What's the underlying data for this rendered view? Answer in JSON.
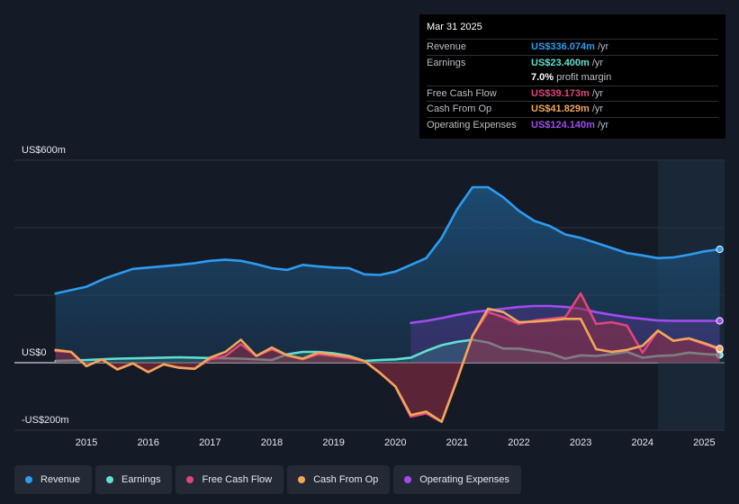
{
  "tooltip": {
    "date": "Mar 31 2025",
    "rows": [
      {
        "label": "Revenue",
        "value": "US$336.074m",
        "unit": "/yr",
        "color": "#2d9cf0"
      },
      {
        "label": "Earnings",
        "value": "US$23.400m",
        "unit": "/yr",
        "color": "#5fe0d1"
      },
      {
        "label": "",
        "value": "7.0%",
        "unit": "profit margin",
        "color": "#ffffff"
      },
      {
        "label": "Free Cash Flow",
        "value": "US$39.173m",
        "unit": "/yr",
        "color": "#e0457b"
      },
      {
        "label": "Cash From Op",
        "value": "US$41.829m",
        "unit": "/yr",
        "color": "#f2a65a"
      },
      {
        "label": "Operating Expenses",
        "value": "US$124.140m",
        "unit": "/yr",
        "color": "#a24bf2"
      }
    ]
  },
  "legend": [
    {
      "label": "Revenue",
      "color": "#2d9cf0"
    },
    {
      "label": "Earnings",
      "color": "#5fe0d1"
    },
    {
      "label": "Free Cash Flow",
      "color": "#e0457b"
    },
    {
      "label": "Cash From Op",
      "color": "#f2a65a"
    },
    {
      "label": "Operating Expenses",
      "color": "#a24bf2"
    }
  ],
  "chart_data": {
    "type": "area",
    "y_unit": "US$ millions",
    "ylim": [
      -200,
      600
    ],
    "y_tick_labels": [
      {
        "value": 600,
        "label": "US$600m"
      },
      {
        "value": 0,
        "label": "US$0"
      },
      {
        "value": -200,
        "label": "-US$200m"
      }
    ],
    "xlim": [
      2014.3,
      2025.3
    ],
    "x_ticks": [
      2015,
      2016,
      2017,
      2018,
      2019,
      2020,
      2021,
      2022,
      2023,
      2024,
      2025
    ],
    "x_tick_labels": [
      "2015",
      "2016",
      "2017",
      "2018",
      "2019",
      "2020",
      "2021",
      "2022",
      "2023",
      "2024",
      "2025"
    ],
    "forecast_shade_start": 2024.25,
    "series": [
      {
        "name": "Revenue",
        "color": "#2d9cf0",
        "fill": true,
        "points": [
          [
            2014.5,
            205
          ],
          [
            2015.0,
            225
          ],
          [
            2015.3,
            250
          ],
          [
            2015.75,
            278
          ],
          [
            2016.0,
            282
          ],
          [
            2016.5,
            290
          ],
          [
            2016.75,
            295
          ],
          [
            2017.0,
            302
          ],
          [
            2017.25,
            305
          ],
          [
            2017.5,
            302
          ],
          [
            2017.75,
            292
          ],
          [
            2018.0,
            280
          ],
          [
            2018.25,
            275
          ],
          [
            2018.5,
            290
          ],
          [
            2018.75,
            285
          ],
          [
            2019.0,
            282
          ],
          [
            2019.25,
            280
          ],
          [
            2019.5,
            262
          ],
          [
            2019.75,
            260
          ],
          [
            2020.0,
            270
          ],
          [
            2020.25,
            290
          ],
          [
            2020.5,
            310
          ],
          [
            2020.75,
            370
          ],
          [
            2021.0,
            455
          ],
          [
            2021.25,
            520
          ],
          [
            2021.5,
            520
          ],
          [
            2021.75,
            490
          ],
          [
            2022.0,
            450
          ],
          [
            2022.25,
            420
          ],
          [
            2022.5,
            405
          ],
          [
            2022.75,
            380
          ],
          [
            2023.0,
            370
          ],
          [
            2023.25,
            355
          ],
          [
            2023.5,
            340
          ],
          [
            2023.75,
            325
          ],
          [
            2024.0,
            318
          ],
          [
            2024.25,
            310
          ],
          [
            2024.5,
            312
          ],
          [
            2024.75,
            320
          ],
          [
            2025.0,
            330
          ],
          [
            2025.25,
            336
          ]
        ]
      },
      {
        "name": "Operating Expenses",
        "color": "#a24bf2",
        "fill": true,
        "points": [
          [
            2020.25,
            118
          ],
          [
            2020.5,
            124
          ],
          [
            2020.75,
            132
          ],
          [
            2021.0,
            142
          ],
          [
            2021.25,
            150
          ],
          [
            2021.5,
            155
          ],
          [
            2021.75,
            160
          ],
          [
            2022.0,
            165
          ],
          [
            2022.25,
            168
          ],
          [
            2022.5,
            168
          ],
          [
            2022.75,
            165
          ],
          [
            2023.0,
            160
          ],
          [
            2023.25,
            150
          ],
          [
            2023.5,
            142
          ],
          [
            2023.75,
            135
          ],
          [
            2024.0,
            130
          ],
          [
            2024.25,
            125
          ],
          [
            2024.5,
            124
          ],
          [
            2024.75,
            124
          ],
          [
            2025.0,
            124
          ],
          [
            2025.25,
            124
          ]
        ]
      },
      {
        "name": "Earnings",
        "color": "#5fe0d1",
        "fill": true,
        "points": [
          [
            2014.5,
            5
          ],
          [
            2015.0,
            8
          ],
          [
            2015.5,
            12
          ],
          [
            2016.0,
            14
          ],
          [
            2016.5,
            16
          ],
          [
            2017.0,
            14
          ],
          [
            2017.5,
            12
          ],
          [
            2018.0,
            8
          ],
          [
            2018.25,
            25
          ],
          [
            2018.5,
            32
          ],
          [
            2018.75,
            32
          ],
          [
            2019.0,
            28
          ],
          [
            2019.25,
            20
          ],
          [
            2019.5,
            5
          ],
          [
            2019.75,
            8
          ],
          [
            2020.0,
            10
          ],
          [
            2020.25,
            15
          ],
          [
            2020.5,
            35
          ],
          [
            2020.75,
            52
          ],
          [
            2021.0,
            62
          ],
          [
            2021.25,
            68
          ],
          [
            2021.5,
            60
          ],
          [
            2021.75,
            42
          ],
          [
            2022.0,
            42
          ],
          [
            2022.25,
            35
          ],
          [
            2022.5,
            28
          ],
          [
            2022.75,
            12
          ],
          [
            2023.0,
            22
          ],
          [
            2023.25,
            20
          ],
          [
            2023.5,
            25
          ],
          [
            2023.75,
            32
          ],
          [
            2024.0,
            15
          ],
          [
            2024.25,
            20
          ],
          [
            2024.5,
            22
          ],
          [
            2024.75,
            30
          ],
          [
            2025.0,
            26
          ],
          [
            2025.25,
            23
          ]
        ]
      },
      {
        "name": "Free Cash Flow",
        "color": "#e0457b",
        "fill": true,
        "points": [
          [
            2014.5,
            35
          ],
          [
            2014.75,
            32
          ],
          [
            2015.0,
            -10
          ],
          [
            2015.25,
            10
          ],
          [
            2015.5,
            -20
          ],
          [
            2015.75,
            -2
          ],
          [
            2016.0,
            -28
          ],
          [
            2016.25,
            -5
          ],
          [
            2016.5,
            -15
          ],
          [
            2016.75,
            -18
          ],
          [
            2017.0,
            10
          ],
          [
            2017.25,
            20
          ],
          [
            2017.5,
            55
          ],
          [
            2017.75,
            20
          ],
          [
            2018.0,
            40
          ],
          [
            2018.25,
            22
          ],
          [
            2018.5,
            10
          ],
          [
            2018.75,
            25
          ],
          [
            2019.0,
            20
          ],
          [
            2019.25,
            14
          ],
          [
            2019.5,
            5
          ],
          [
            2019.75,
            -30
          ],
          [
            2020.0,
            -70
          ],
          [
            2020.25,
            -160
          ],
          [
            2020.5,
            -150
          ],
          [
            2020.75,
            -175
          ],
          [
            2021.0,
            -50
          ],
          [
            2021.25,
            80
          ],
          [
            2021.5,
            150
          ],
          [
            2021.75,
            135
          ],
          [
            2022.0,
            115
          ],
          [
            2022.25,
            125
          ],
          [
            2022.5,
            130
          ],
          [
            2022.75,
            135
          ],
          [
            2023.0,
            205
          ],
          [
            2023.25,
            115
          ],
          [
            2023.5,
            120
          ],
          [
            2023.75,
            110
          ],
          [
            2024.0,
            30
          ],
          [
            2024.25,
            95
          ],
          [
            2024.5,
            65
          ],
          [
            2024.75,
            72
          ],
          [
            2025.0,
            55
          ],
          [
            2025.25,
            39
          ]
        ]
      },
      {
        "name": "Cash From Op",
        "color": "#f2a65a",
        "fill": false,
        "points": [
          [
            2014.5,
            38
          ],
          [
            2014.75,
            32
          ],
          [
            2015.0,
            -10
          ],
          [
            2015.25,
            10
          ],
          [
            2015.5,
            -20
          ],
          [
            2015.75,
            -2
          ],
          [
            2016.0,
            -28
          ],
          [
            2016.25,
            -5
          ],
          [
            2016.5,
            -15
          ],
          [
            2016.75,
            -18
          ],
          [
            2017.0,
            15
          ],
          [
            2017.25,
            32
          ],
          [
            2017.5,
            68
          ],
          [
            2017.75,
            20
          ],
          [
            2018.0,
            45
          ],
          [
            2018.25,
            22
          ],
          [
            2018.5,
            12
          ],
          [
            2018.75,
            30
          ],
          [
            2019.0,
            24
          ],
          [
            2019.25,
            18
          ],
          [
            2019.5,
            5
          ],
          [
            2019.75,
            -30
          ],
          [
            2020.0,
            -70
          ],
          [
            2020.25,
            -155
          ],
          [
            2020.5,
            -145
          ],
          [
            2020.75,
            -175
          ],
          [
            2021.0,
            -50
          ],
          [
            2021.25,
            80
          ],
          [
            2021.5,
            160
          ],
          [
            2021.75,
            150
          ],
          [
            2022.0,
            120
          ],
          [
            2022.25,
            122
          ],
          [
            2022.5,
            125
          ],
          [
            2022.75,
            130
          ],
          [
            2023.0,
            130
          ],
          [
            2023.25,
            40
          ],
          [
            2023.5,
            32
          ],
          [
            2023.75,
            38
          ],
          [
            2024.0,
            50
          ],
          [
            2024.25,
            95
          ],
          [
            2024.5,
            65
          ],
          [
            2024.75,
            72
          ],
          [
            2025.0,
            58
          ],
          [
            2025.25,
            42
          ]
        ]
      }
    ]
  }
}
